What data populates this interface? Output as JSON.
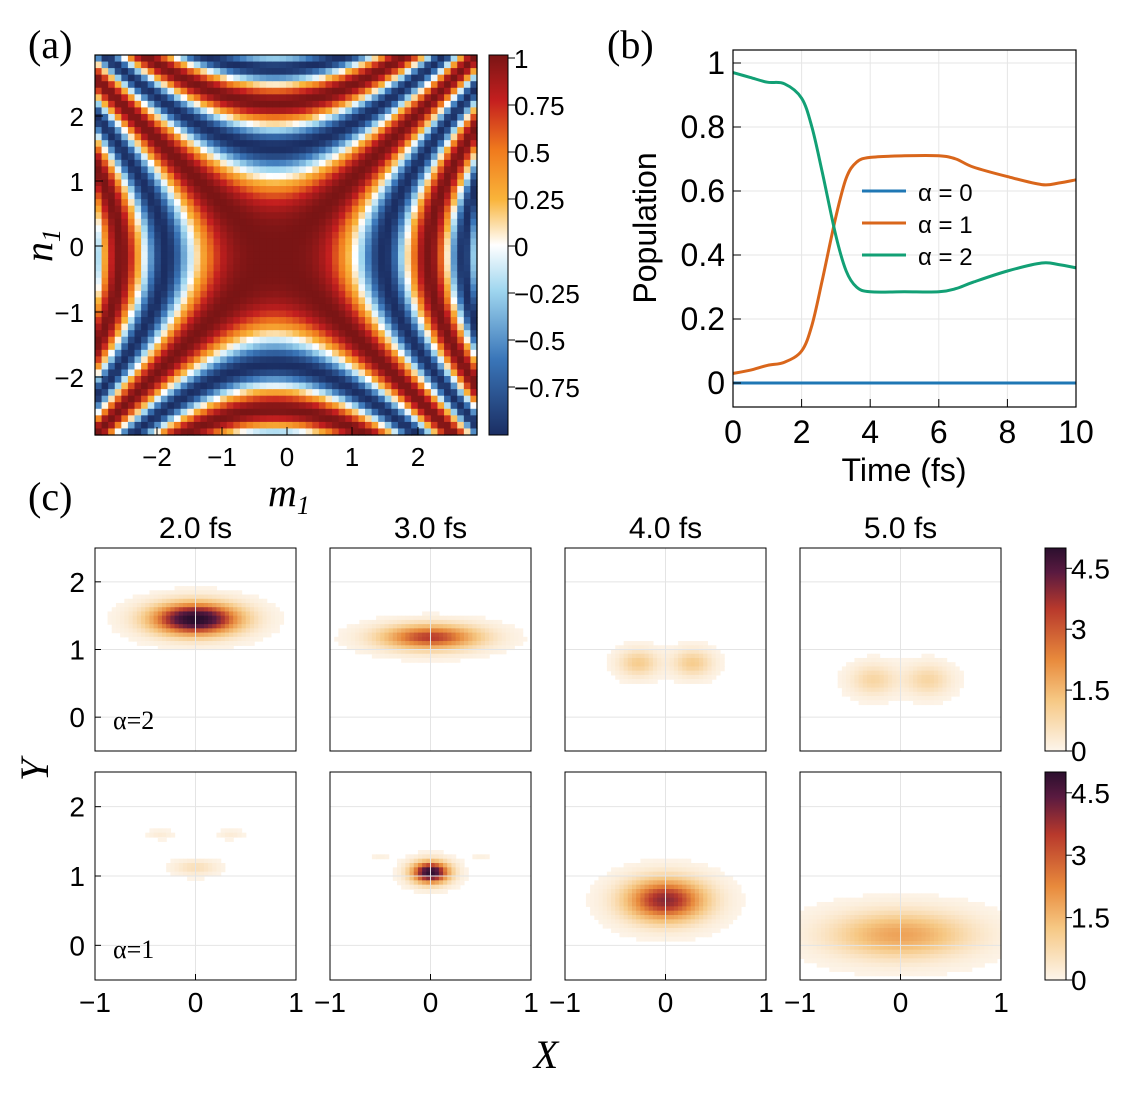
{
  "colors": {
    "alpha0": "#1f77b4",
    "alpha1": "#d9661b",
    "alpha2": "#12a075",
    "density_scale": [
      "#fdf5eb",
      "#f6c884",
      "#e88a3c",
      "#b8392c",
      "#5a1a40",
      "#2b0f2e"
    ],
    "diverging_scale": [
      "#1b2e63",
      "#3a76b9",
      "#9fd6ef",
      "#ffffff",
      "#f9b43a",
      "#f07a1d",
      "#c41f1f",
      "#7a1515"
    ]
  },
  "panel_a": {
    "label": "(a)",
    "xlabel": "m",
    "xlabel_sub": "1",
    "ylabel": "n",
    "ylabel_sub": "1",
    "x_ticks": [
      "−2",
      "−1",
      "0",
      "1",
      "2"
    ],
    "y_ticks": [
      "2",
      "1",
      "0",
      "−1",
      "−2"
    ],
    "colorbar_ticks": [
      "1",
      "0.75",
      "0.5",
      "0.25",
      "0",
      "−0.25",
      "−0.5",
      "−0.75"
    ]
  },
  "panel_b": {
    "label": "(b)",
    "xlabel": "Time (fs)",
    "ylabel": "Population",
    "x_ticks": [
      "0",
      "2",
      "4",
      "6",
      "8",
      "10"
    ],
    "y_ticks": [
      "0",
      "0.2",
      "0.4",
      "0.6",
      "0.8",
      "1"
    ]
  },
  "panel_c": {
    "label": "(c)",
    "xlabel": "X",
    "ylabel": "Y",
    "times": [
      "2.0 fs",
      "3.0 fs",
      "4.0 fs",
      "5.0 fs"
    ],
    "row_labels": [
      "α=2",
      "α=1"
    ],
    "x_ticks": [
      "−1",
      "0",
      "1"
    ],
    "y_ticks": [
      "2",
      "1",
      "0"
    ],
    "colorbar_ticks": [
      "4.5",
      "3",
      "1.5",
      "0"
    ]
  },
  "chart_data": [
    {
      "type": "heatmap",
      "panel": "(a)",
      "xlabel": "m1",
      "ylabel": "n1",
      "xlim": [
        -3,
        3
      ],
      "ylim": [
        -3,
        3
      ],
      "colorbar_range": [
        -1,
        1
      ],
      "description_values": "cos-like correlation pattern with diagonal symmetry"
    },
    {
      "type": "line",
      "panel": "(b)",
      "xlabel": "Time (fs)",
      "ylabel": "Population",
      "xlim": [
        0,
        10
      ],
      "ylim": [
        0,
        1
      ],
      "legend_position": "center-right",
      "series": [
        {
          "name": "α = 0",
          "x": [
            0,
            10
          ],
          "y": [
            0,
            0
          ]
        },
        {
          "name": "α = 1",
          "x": [
            0,
            0.5,
            1,
            1.5,
            2,
            2.3,
            2.6,
            3.0,
            3.3,
            3.6,
            4.0,
            5.0,
            6.0,
            6.5,
            7.0,
            8.0,
            9.0,
            9.5,
            10
          ],
          "y": [
            0.03,
            0.04,
            0.055,
            0.065,
            0.1,
            0.18,
            0.32,
            0.52,
            0.64,
            0.69,
            0.705,
            0.71,
            0.71,
            0.7,
            0.675,
            0.645,
            0.62,
            0.625,
            0.635
          ]
        },
        {
          "name": "α = 2",
          "x": [
            0,
            0.5,
            1,
            1.5,
            2,
            2.3,
            2.6,
            3.0,
            3.3,
            3.6,
            4.0,
            5.0,
            6.0,
            6.5,
            7.0,
            8.0,
            9.0,
            9.5,
            10
          ],
          "y": [
            0.97,
            0.955,
            0.94,
            0.935,
            0.89,
            0.8,
            0.66,
            0.46,
            0.35,
            0.3,
            0.285,
            0.285,
            0.285,
            0.295,
            0.315,
            0.35,
            0.375,
            0.37,
            0.36
          ]
        }
      ]
    },
    {
      "type": "heatmap",
      "panel": "(c)",
      "xlabel": "X",
      "ylabel": "Y",
      "xlim": [
        -1,
        1
      ],
      "ylim": [
        -0.5,
        2.5
      ],
      "colorbar_range": [
        0,
        5
      ],
      "rows": [
        {
          "label": "α=2",
          "frames": [
            {
              "time": "2.0 fs",
              "blobs": [
                {
                  "x": 0.0,
                  "y": 1.45,
                  "sx": 0.28,
                  "sy": 0.15,
                  "peak": 5.2
                }
              ]
            },
            {
              "time": "3.0 fs",
              "blobs": [
                {
                  "x": 0.0,
                  "y": 1.18,
                  "sx": 0.32,
                  "sy": 0.12,
                  "peak": 3.0
                }
              ]
            },
            {
              "time": "4.0 fs",
              "blobs": [
                {
                  "x": -0.27,
                  "y": 0.8,
                  "sx": 0.13,
                  "sy": 0.13,
                  "peak": 0.9
                },
                {
                  "x": 0.27,
                  "y": 0.8,
                  "sx": 0.13,
                  "sy": 0.13,
                  "peak": 0.9
                }
              ]
            },
            {
              "time": "5.0 fs",
              "blobs": [
                {
                  "x": -0.27,
                  "y": 0.55,
                  "sx": 0.15,
                  "sy": 0.15,
                  "peak": 0.7
                },
                {
                  "x": 0.27,
                  "y": 0.55,
                  "sx": 0.15,
                  "sy": 0.15,
                  "peak": 0.7
                }
              ]
            }
          ]
        },
        {
          "label": "α=1",
          "frames": [
            {
              "time": "2.0 fs",
              "blobs": [
                {
                  "x": 0.0,
                  "y": 1.12,
                  "sx": 0.14,
                  "sy": 0.07,
                  "peak": 0.5
                },
                {
                  "x": -0.35,
                  "y": 1.6,
                  "sx": 0.08,
                  "sy": 0.04,
                  "peak": 0.2
                },
                {
                  "x": 0.35,
                  "y": 1.6,
                  "sx": 0.08,
                  "sy": 0.04,
                  "peak": 0.2
                }
              ]
            },
            {
              "time": "3.0 fs",
              "blobs": [
                {
                  "x": 0.0,
                  "y": 1.05,
                  "sx": 0.12,
                  "sy": 0.1,
                  "peak": 5.0
                },
                {
                  "x": -0.5,
                  "y": 1.3,
                  "sx": 0.07,
                  "sy": 0.03,
                  "peak": 0.12
                },
                {
                  "x": 0.5,
                  "y": 1.3,
                  "sx": 0.07,
                  "sy": 0.03,
                  "peak": 0.12
                }
              ]
            },
            {
              "time": "4.0 fs",
              "blobs": [
                {
                  "x": 0.0,
                  "y": 0.65,
                  "sx": 0.26,
                  "sy": 0.2,
                  "peak": 3.5
                }
              ]
            },
            {
              "time": "5.0 fs",
              "blobs": [
                {
                  "x": 0.0,
                  "y": 0.15,
                  "sx": 0.45,
                  "sy": 0.22,
                  "peak": 1.6
                }
              ]
            }
          ]
        }
      ]
    }
  ]
}
